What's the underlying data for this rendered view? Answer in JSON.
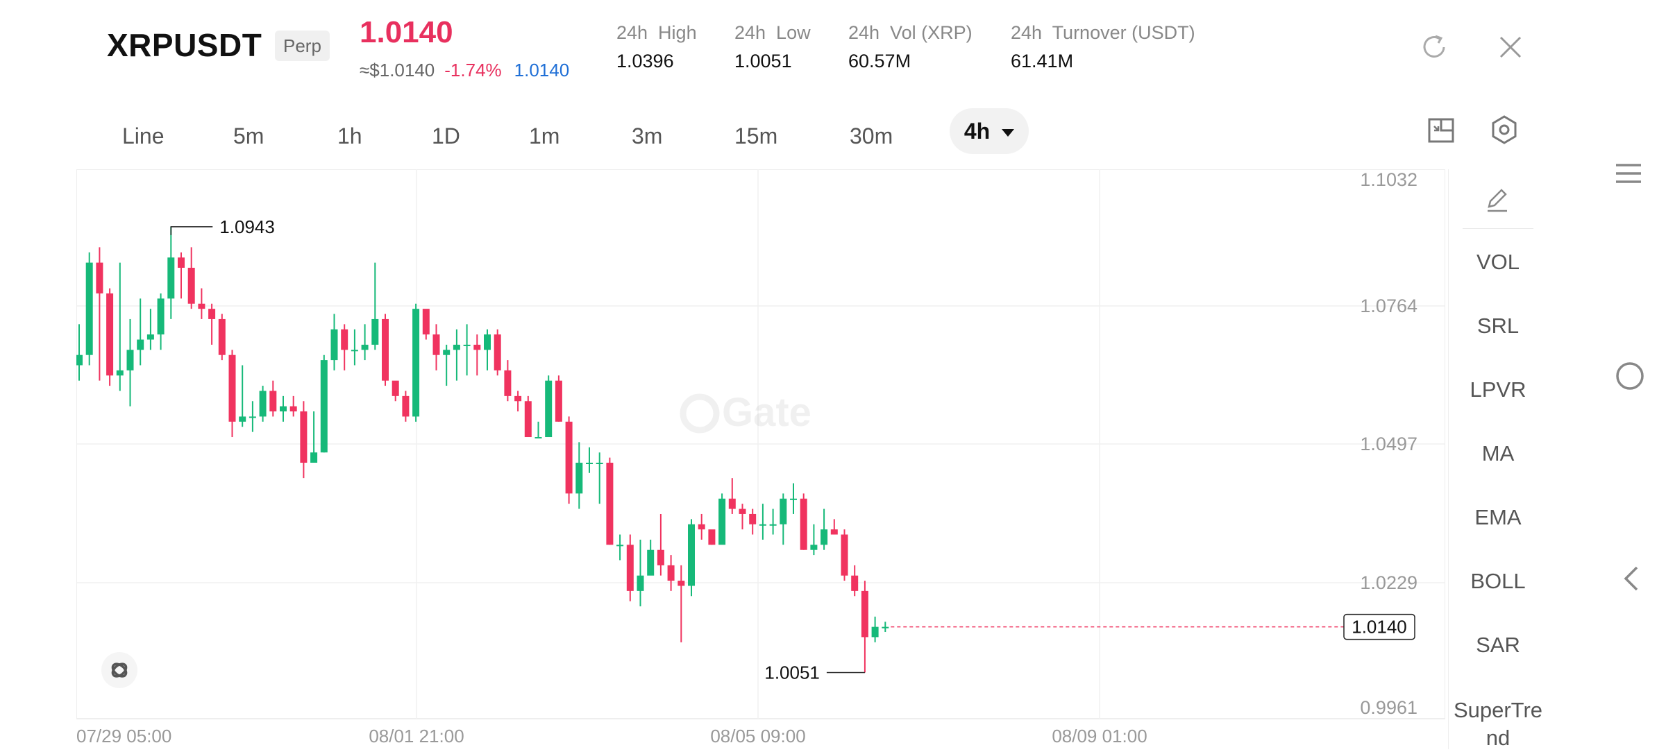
{
  "header": {
    "symbol": "XRPUSDT",
    "badge": "Perp",
    "last_price": "1.0140",
    "fiat_price": "≈$1.0140",
    "change_pct": "-1.74%",
    "mark_price": "1.0140",
    "stats": [
      {
        "label": "24h  High",
        "value": "1.0396"
      },
      {
        "label": "24h  Low",
        "value": "1.0051"
      },
      {
        "label": "24h  Vol (XRP)",
        "value": "60.57M"
      },
      {
        "label": "24h  Turnover (USDT)",
        "value": "61.41M"
      }
    ],
    "icons": {
      "refresh": "refresh-icon",
      "close": "close-icon"
    }
  },
  "intervals": {
    "items": [
      "Line",
      "5m",
      "1h",
      "1D",
      "1m",
      "3m",
      "15m",
      "30m"
    ],
    "selected": "4h",
    "icons": {
      "fullscreen": "fullscreen-icon",
      "settings": "settings-icon"
    }
  },
  "chart_data": {
    "type": "candlestick",
    "interval": "4h",
    "price_ticks": [
      "1.1032",
      "1.0764",
      "1.0497",
      "1.0229",
      "0.9961"
    ],
    "y_range": [
      0.9961,
      1.1032
    ],
    "time_ticks": [
      "07/29 05:00",
      "08/01 21:00",
      "08/05 09:00",
      "08/09 01:00"
    ],
    "max_label": "1.0943",
    "min_label": "1.0051",
    "last_price_label": "1.0140",
    "watermark": "Gate",
    "up_color": "#16b979",
    "down_color": "#f0335f",
    "candles": [
      [
        1.065,
        1.067,
        1.073,
        1.062
      ],
      [
        1.067,
        1.085,
        1.087,
        1.065
      ],
      [
        1.085,
        1.079,
        1.088,
        1.062
      ],
      [
        1.079,
        1.063,
        1.08,
        1.061
      ],
      [
        1.063,
        1.064,
        1.085,
        1.06
      ],
      [
        1.064,
        1.068,
        1.074,
        1.057
      ],
      [
        1.068,
        1.07,
        1.078,
        1.065
      ],
      [
        1.07,
        1.071,
        1.076,
        1.068
      ],
      [
        1.071,
        1.078,
        1.079,
        1.068
      ],
      [
        1.078,
        1.086,
        1.092,
        1.074
      ],
      [
        1.086,
        1.084,
        1.087,
        1.078
      ],
      [
        1.084,
        1.077,
        1.088,
        1.076
      ],
      [
        1.077,
        1.076,
        1.08,
        1.074
      ],
      [
        1.076,
        1.074,
        1.077,
        1.069
      ],
      [
        1.074,
        1.067,
        1.075,
        1.066
      ],
      [
        1.067,
        1.054,
        1.068,
        1.051
      ],
      [
        1.054,
        1.055,
        1.065,
        1.053
      ],
      [
        1.055,
        1.055,
        1.058,
        1.052
      ],
      [
        1.055,
        1.06,
        1.061,
        1.054
      ],
      [
        1.06,
        1.056,
        1.062,
        1.055
      ],
      [
        1.056,
        1.057,
        1.059,
        1.054
      ],
      [
        1.057,
        1.056,
        1.059,
        1.055
      ],
      [
        1.056,
        1.046,
        1.058,
        1.043
      ],
      [
        1.046,
        1.048,
        1.056,
        1.046
      ],
      [
        1.048,
        1.066,
        1.067,
        1.048
      ],
      [
        1.066,
        1.072,
        1.075,
        1.064
      ],
      [
        1.072,
        1.068,
        1.073,
        1.064
      ],
      [
        1.068,
        1.068,
        1.072,
        1.065
      ],
      [
        1.068,
        1.069,
        1.073,
        1.066
      ],
      [
        1.069,
        1.074,
        1.085,
        1.068
      ],
      [
        1.074,
        1.062,
        1.075,
        1.061
      ],
      [
        1.062,
        1.059,
        1.061,
        1.058
      ],
      [
        1.059,
        1.055,
        1.06,
        1.054
      ],
      [
        1.055,
        1.076,
        1.077,
        1.054
      ],
      [
        1.076,
        1.071,
        1.074,
        1.07
      ],
      [
        1.071,
        1.067,
        1.073,
        1.064
      ],
      [
        1.067,
        1.068,
        1.069,
        1.061
      ],
      [
        1.068,
        1.069,
        1.072,
        1.062
      ],
      [
        1.069,
        1.069,
        1.073,
        1.063
      ],
      [
        1.069,
        1.068,
        1.071,
        1.063
      ],
      [
        1.068,
        1.071,
        1.072,
        1.064
      ],
      [
        1.071,
        1.064,
        1.072,
        1.063
      ],
      [
        1.064,
        1.059,
        1.066,
        1.058
      ],
      [
        1.059,
        1.058,
        1.06,
        1.056
      ],
      [
        1.058,
        1.051,
        1.059,
        1.051
      ],
      [
        1.051,
        1.051,
        1.054,
        1.051
      ],
      [
        1.051,
        1.062,
        1.063,
        1.051
      ],
      [
        1.062,
        1.054,
        1.063,
        1.054
      ],
      [
        1.054,
        1.04,
        1.055,
        1.038
      ],
      [
        1.04,
        1.046,
        1.05,
        1.037
      ],
      [
        1.046,
        1.046,
        1.049,
        1.044
      ],
      [
        1.046,
        1.046,
        1.048,
        1.038
      ],
      [
        1.046,
        1.03,
        1.047,
        1.03
      ],
      [
        1.03,
        1.03,
        1.032,
        1.027
      ],
      [
        1.03,
        1.021,
        1.032,
        1.019
      ],
      [
        1.021,
        1.024,
        1.031,
        1.018
      ],
      [
        1.024,
        1.029,
        1.031,
        1.026
      ],
      [
        1.029,
        1.026,
        1.036,
        1.024
      ],
      [
        1.026,
        1.023,
        1.028,
        1.021
      ],
      [
        1.023,
        1.022,
        1.026,
        1.011
      ],
      [
        1.022,
        1.034,
        1.035,
        1.02
      ],
      [
        1.034,
        1.033,
        1.036,
        1.031
      ],
      [
        1.033,
        1.03,
        1.032,
        1.03
      ],
      [
        1.03,
        1.039,
        1.04,
        1.031
      ],
      [
        1.039,
        1.037,
        1.043,
        1.036
      ],
      [
        1.037,
        1.036,
        1.038,
        1.033
      ],
      [
        1.036,
        1.034,
        1.037,
        1.032
      ],
      [
        1.034,
        1.034,
        1.038,
        1.031
      ],
      [
        1.034,
        1.034,
        1.037,
        1.032
      ],
      [
        1.034,
        1.039,
        1.04,
        1.03
      ],
      [
        1.039,
        1.039,
        1.042,
        1.036
      ],
      [
        1.039,
        1.029,
        1.04,
        1.029
      ],
      [
        1.029,
        1.03,
        1.034,
        1.028
      ],
      [
        1.03,
        1.033,
        1.037,
        1.029
      ],
      [
        1.033,
        1.032,
        1.035,
        1.032
      ],
      [
        1.032,
        1.024,
        1.033,
        1.023
      ],
      [
        1.024,
        1.021,
        1.026,
        1.02
      ],
      [
        1.021,
        1.012,
        1.023,
        1.0051
      ],
      [
        1.012,
        1.014,
        1.016,
        1.011
      ],
      [
        1.014,
        1.014,
        1.015,
        1.013
      ]
    ]
  },
  "indicators": {
    "items": [
      "VOL",
      "SRL",
      "LPVR",
      "MA",
      "EMA",
      "BOLL",
      "SAR",
      "SuperTrend"
    ],
    "edit_icon": "edit-icon"
  },
  "system_nav": {
    "menu": "menu-icon",
    "home": "home-icon",
    "back": "back-icon"
  }
}
